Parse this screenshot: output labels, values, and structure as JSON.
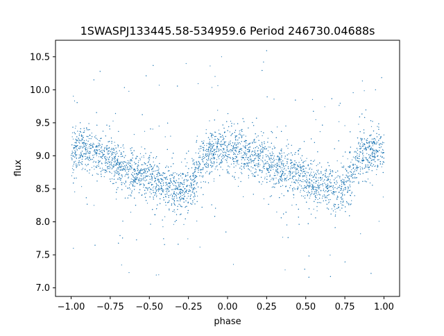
{
  "chart_data": {
    "type": "scatter",
    "title": "1SWASPJ133445.58-534959.6 Period 246730.04688s",
    "xlabel": "phase",
    "ylabel": "flux",
    "xlim": [
      -1.1,
      1.1
    ],
    "ylim": [
      6.87,
      10.75
    ],
    "x_ticks": [
      -1.0,
      -0.75,
      -0.5,
      -0.25,
      0.0,
      0.25,
      0.5,
      0.75,
      1.0
    ],
    "x_tick_labels": [
      "−1.00",
      "−0.75",
      "−0.50",
      "−0.25",
      "0.00",
      "0.25",
      "0.50",
      "0.75",
      "1.00"
    ],
    "y_ticks": [
      7.0,
      7.5,
      8.0,
      8.5,
      9.0,
      9.5,
      10.0,
      10.5
    ],
    "y_tick_labels": [
      "7.0",
      "7.5",
      "8.0",
      "8.5",
      "9.0",
      "9.5",
      "10.0",
      "10.5"
    ],
    "grid": false,
    "marker_color": "#1f77b4",
    "series": [
      {
        "x": [
          -1.0,
          -0.95,
          -0.9,
          -0.85,
          -0.8,
          -0.75,
          -0.7,
          -0.65,
          -0.6,
          -0.55,
          -0.5,
          -0.45,
          -0.4,
          -0.35,
          -0.3,
          -0.25,
          -0.2,
          -0.15,
          -0.1,
          -0.05,
          0.0,
          0.05,
          0.1,
          0.15,
          0.2,
          0.25,
          0.3,
          0.35,
          0.4,
          0.45,
          0.5,
          0.55,
          0.6,
          0.65,
          0.7,
          0.75,
          0.8,
          0.85,
          0.9,
          0.95,
          1.0
        ],
        "y": [
          9.0,
          9.1,
          9.1,
          9.05,
          9.0,
          8.95,
          8.85,
          8.8,
          8.75,
          8.7,
          8.65,
          8.6,
          8.55,
          8.5,
          8.45,
          8.5,
          8.7,
          8.95,
          9.05,
          9.1,
          9.1,
          9.1,
          9.05,
          9.0,
          8.95,
          8.9,
          8.85,
          8.8,
          8.75,
          8.7,
          8.65,
          8.6,
          8.55,
          8.5,
          8.45,
          8.5,
          8.7,
          8.95,
          9.05,
          9.1,
          9.1
        ]
      }
    ]
  }
}
